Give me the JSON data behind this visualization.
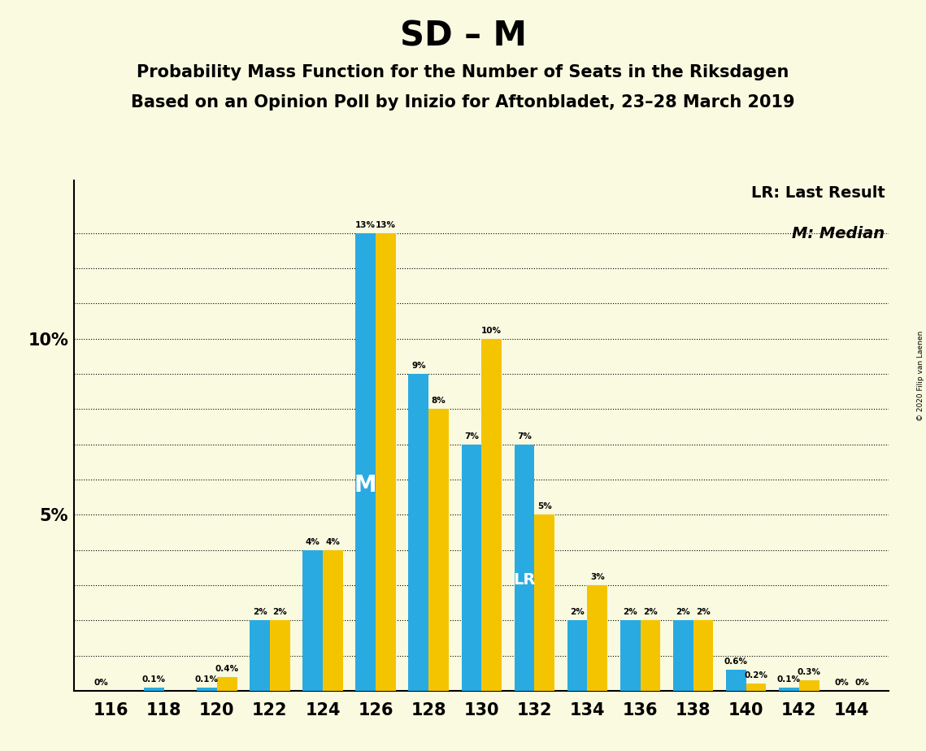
{
  "title": "SD – M",
  "subtitle1": "Probability Mass Function for the Number of Seats in the Riksdagen",
  "subtitle2": "Based on an Opinion Poll by Inizio for Aftonbladet, 23–28 March 2019",
  "copyright": "© 2020 Filip van Laenen",
  "seats": [
    116,
    118,
    120,
    122,
    124,
    126,
    128,
    130,
    132,
    134,
    136,
    138,
    140,
    142,
    144
  ],
  "blue_values": [
    0.0,
    0.1,
    0.1,
    2.0,
    4.0,
    13.0,
    9.0,
    7.0,
    7.0,
    2.0,
    2.0,
    2.0,
    0.6,
    0.1,
    0.0
  ],
  "gold_values": [
    0.0,
    0.0,
    0.4,
    2.0,
    4.0,
    13.0,
    8.0,
    10.0,
    5.0,
    3.0,
    2.0,
    2.0,
    0.2,
    0.3,
    0.0
  ],
  "blue_labels": [
    "0%",
    "0.1%",
    "0.1%",
    "2%",
    "4%",
    "13%",
    "9%",
    "7%",
    "7%",
    "2%",
    "2%",
    "2%",
    "0.6%",
    "0.1%",
    "0%"
  ],
  "gold_labels": [
    "",
    "",
    "0.4%",
    "2%",
    "4%",
    "13%",
    "8%",
    "10%",
    "5%",
    "3%",
    "2%",
    "2%",
    "0.2%",
    "0.3%",
    "0%"
  ],
  "median_seat": 126,
  "last_result_seat": 132,
  "blue_color": "#29ABE2",
  "gold_color": "#F5C400",
  "background_color": "#FAFAE0",
  "ylim": [
    0,
    14.5
  ],
  "bar_width": 0.38,
  "legend_lr": "LR: Last Result",
  "legend_m": "M: Median"
}
